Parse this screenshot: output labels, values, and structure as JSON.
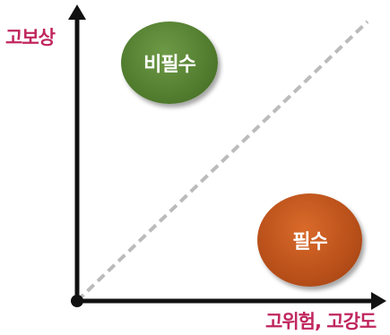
{
  "diagram": {
    "y_axis_label": "고보상",
    "x_axis_label": "고위험, 고강도",
    "label_color": "#c0265e",
    "axis_color": "#111111",
    "diagonal_color": "#bbbbbb",
    "bubbles": [
      {
        "id": "optional",
        "label": "비필수",
        "color": "#527d2f"
      },
      {
        "id": "required",
        "label": "필수",
        "color": "#b9501a"
      }
    ]
  }
}
